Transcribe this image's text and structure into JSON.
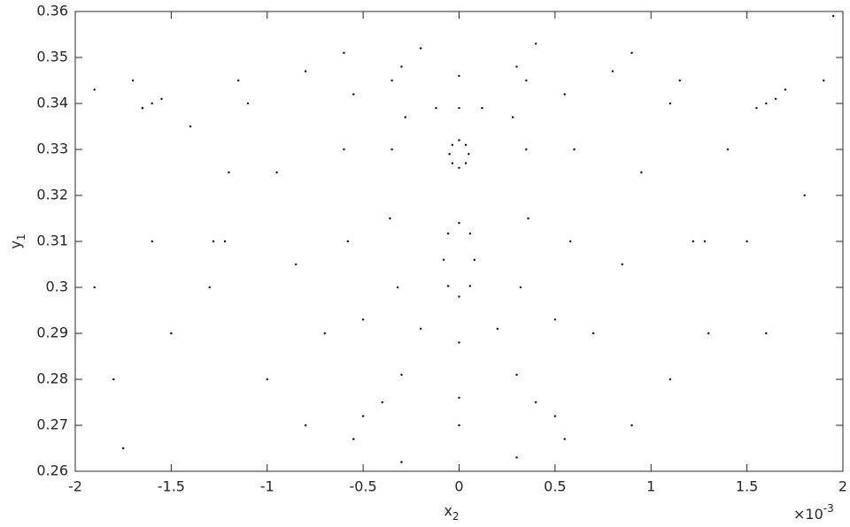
{
  "chart_data": {
    "type": "scatter",
    "xlabel": {
      "text": "x",
      "subscript": "2"
    },
    "ylabel": {
      "text": "y",
      "subscript": "1"
    },
    "x_multiplier": {
      "base": "×10",
      "exponent": "-3"
    },
    "color": "#000000",
    "xlim": [
      -2,
      2
    ],
    "xticks": [
      -2,
      -1.5,
      -1,
      -0.5,
      0,
      0.5,
      1,
      1.5,
      2
    ],
    "ylim": [
      0.26,
      0.36
    ],
    "yticks": [
      0.26,
      0.27,
      0.28,
      0.29,
      0.3,
      0.31,
      0.32,
      0.33,
      0.34,
      0.35,
      0.36
    ],
    "grid": false,
    "x": [
      0.05,
      0.035,
      0,
      -0.035,
      -0.05,
      -0.035,
      0,
      0.035,
      0.08,
      0.057,
      0,
      -0.057,
      -0.08,
      -0.057,
      0,
      0.057,
      0,
      0.2,
      0.32,
      0.36,
      0.35,
      0.28,
      0.12,
      0,
      -0.12,
      -0.28,
      -0.35,
      -0.36,
      -0.32,
      -0.2,
      0,
      0.3,
      0.5,
      0.58,
      0.6,
      0.55,
      0.35,
      0,
      -0.35,
      -0.55,
      -0.6,
      -0.58,
      -0.5,
      -0.3,
      0,
      0.4,
      0.7,
      0.85,
      0.95,
      1.1,
      1.15,
      0.8,
      0.3,
      -0.3,
      -0.8,
      -1.15,
      -1.1,
      -0.95,
      -0.85,
      -0.7,
      -0.4,
      1.55,
      1.6,
      1.65,
      -1.55,
      -1.6,
      -1.65,
      1.22,
      1.28,
      -1.22,
      -1.28,
      0.5,
      0.55,
      -0.5,
      -0.55,
      -1.9,
      -1.7,
      -1.4,
      -1.2,
      -1.5,
      -1.8,
      -1.9,
      -1.6,
      1.9,
      1.7,
      1.4,
      1.5,
      1.8,
      1.6,
      1.3,
      -1,
      -0.8,
      -0.3,
      0.3,
      0.9,
      -0.2,
      0.4,
      -0.6,
      0.9,
      -1.3,
      1.1,
      1.95,
      -1.75
    ],
    "y": [
      0.329,
      0.331,
      0.332,
      0.331,
      0.329,
      0.327,
      0.326,
      0.327,
      0.306,
      0.3117,
      0.314,
      0.3117,
      0.306,
      0.3003,
      0.298,
      0.3003,
      0.288,
      0.291,
      0.3,
      0.315,
      0.33,
      0.337,
      0.339,
      0.339,
      0.339,
      0.337,
      0.33,
      0.315,
      0.3,
      0.291,
      0.276,
      0.281,
      0.293,
      0.31,
      0.33,
      0.342,
      0.345,
      0.346,
      0.345,
      0.342,
      0.33,
      0.31,
      0.293,
      0.281,
      0.27,
      0.275,
      0.29,
      0.305,
      0.325,
      0.34,
      0.345,
      0.347,
      0.348,
      0.348,
      0.347,
      0.345,
      0.34,
      0.325,
      0.305,
      0.29,
      0.275,
      0.339,
      0.34,
      0.341,
      0.341,
      0.34,
      0.339,
      0.31,
      0.31,
      0.31,
      0.31,
      0.272,
      0.267,
      0.272,
      0.267,
      0.343,
      0.345,
      0.335,
      0.325,
      0.29,
      0.28,
      0.3,
      0.31,
      0.345,
      0.343,
      0.33,
      0.31,
      0.32,
      0.29,
      0.29,
      0.28,
      0.27,
      0.262,
      0.263,
      0.27,
      0.352,
      0.353,
      0.351,
      0.351,
      0.3,
      0.28,
      0.359,
      0.265
    ]
  }
}
